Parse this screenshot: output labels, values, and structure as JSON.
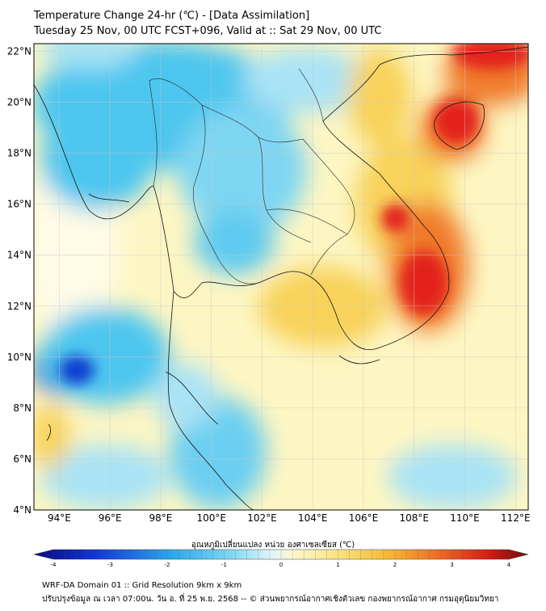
{
  "title_line1": "Temperature Change 24-hr (℃) - [Data Assimilation]",
  "title_line2": "Tuesday 25 Nov, 00 UTC FCST+096, Valid at :: Sat 29 Nov, 00 UTC",
  "map": {
    "lon_range": [
      93,
      112.5
    ],
    "lat_range": [
      4,
      22.3
    ],
    "lon_ticks": [
      "94°E",
      "96°E",
      "98°E",
      "100°E",
      "102°E",
      "104°E",
      "106°E",
      "108°E",
      "110°E",
      "112°E"
    ],
    "lon_values": [
      94,
      96,
      98,
      100,
      102,
      104,
      106,
      108,
      110,
      112
    ],
    "lat_ticks": [
      "22°N",
      "20°N",
      "18°N",
      "16°N",
      "14°N",
      "12°N",
      "10°N",
      "8°N",
      "6°N",
      "4°N"
    ],
    "lat_values": [
      22,
      20,
      18,
      16,
      14,
      12,
      10,
      8,
      6,
      4
    ],
    "colors": {
      "strong_cool": "#1a4fd6",
      "cool": "#4ec6ef",
      "mild_cool": "#a9e3f5",
      "neutral": "#fdf6c3",
      "warm": "#f8d25a",
      "hot": "#f07a2a",
      "very_hot": "#e3241c"
    }
  },
  "colorbar": {
    "label": "อุณหภูมิเปลี่ยนแปลง หน่วย องศาเซลเซียส (℃)",
    "ticks": [
      "-4",
      "-3",
      "-2",
      "-1",
      "0",
      "1",
      "2",
      "3",
      "4"
    ],
    "tick_values": [
      -4,
      -3,
      -2,
      -1,
      0,
      1,
      2,
      3,
      4
    ],
    "range": [
      -4,
      4
    ]
  },
  "footer_line1": "WRF-DA Domain 01 :: Grid Resolution 9km x 9km",
  "footer_line2": "ปรับปรุงข้อมูล ณ เวลา 07:00น. วัน อ. ที่ 25 พ.ย. 2568 -- © ส่วนพยากรณ์อากาศเชิงตัวเลข กองพยากรณ์อากาศ กรมอุตุนิยมวิทยา"
}
